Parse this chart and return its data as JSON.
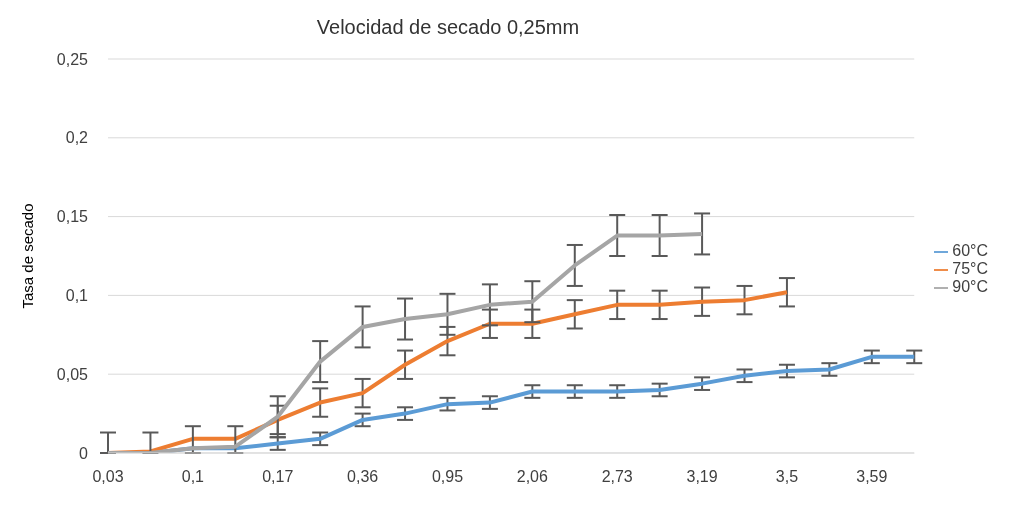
{
  "chart_data": {
    "type": "line",
    "title": "Velocidad de secado 0,25mm",
    "ylabel": "Tasa de secado",
    "categories": [
      "0,03",
      null,
      "0,1",
      null,
      "0,17",
      null,
      "0,36",
      null,
      "0,95",
      null,
      "2,06",
      null,
      "2,73",
      null,
      "3,19",
      null,
      "3,5",
      null,
      "3,59",
      null
    ],
    "series": [
      {
        "name": "60°C",
        "color": "#5b9bd5",
        "values": [
          0,
          0,
          0.003,
          0.003,
          0.006,
          0.009,
          0.021,
          0.025,
          0.031,
          0.032,
          0.039,
          0.039,
          0.039,
          0.04,
          0.044,
          0.049,
          0.052,
          0.053,
          0.061,
          0.061
        ],
        "errors": [
          null,
          null,
          null,
          null,
          0.004,
          0.004,
          0.004,
          0.004,
          0.004,
          0.004,
          0.004,
          0.004,
          0.004,
          0.004,
          0.004,
          0.004,
          0.004,
          0.004,
          0.004,
          0.004
        ]
      },
      {
        "name": "75°C",
        "color": "#ed7d31",
        "values": [
          0,
          0.001,
          0.009,
          0.009,
          0.021,
          0.032,
          0.038,
          0.056,
          0.071,
          0.082,
          0.082,
          0.088,
          0.094,
          0.094,
          0.096,
          0.097,
          0.102,
          null,
          null,
          null
        ],
        "errors": [
          null,
          null,
          null,
          null,
          0.009,
          0.009,
          0.009,
          0.009,
          0.009,
          0.009,
          0.009,
          0.009,
          0.009,
          0.009,
          0.009,
          0.009,
          0.009,
          null,
          null,
          null
        ]
      },
      {
        "name": "90°C",
        "color": "#a5a5a5",
        "values": [
          0,
          0,
          0.003,
          0.004,
          0.023,
          0.058,
          0.08,
          0.085,
          0.088,
          0.094,
          0.096,
          0.119,
          0.138,
          0.138,
          0.139,
          null,
          null,
          null,
          null,
          null
        ],
        "errors": [
          [
            0,
            0.013
          ],
          [
            0,
            0.013
          ],
          [
            0,
            0.017
          ],
          [
            0,
            0.017
          ],
          0.013,
          0.013,
          0.013,
          0.013,
          0.013,
          0.013,
          0.013,
          0.013,
          0.013,
          0.013,
          0.013,
          null,
          null,
          null,
          null,
          null
        ]
      }
    ],
    "ylim": [
      0,
      0.25
    ],
    "yticks": [
      {
        "value": 0,
        "label": "0"
      },
      {
        "value": 0.05,
        "label": "0,05"
      },
      {
        "value": 0.1,
        "label": "0,1"
      },
      {
        "value": 0.15,
        "label": "0,15"
      },
      {
        "value": 0.2,
        "label": "0,2"
      },
      {
        "value": 0.25,
        "label": "0,25"
      }
    ],
    "grid": "y",
    "legend": "right",
    "marker": "none",
    "line_style": "solid"
  }
}
